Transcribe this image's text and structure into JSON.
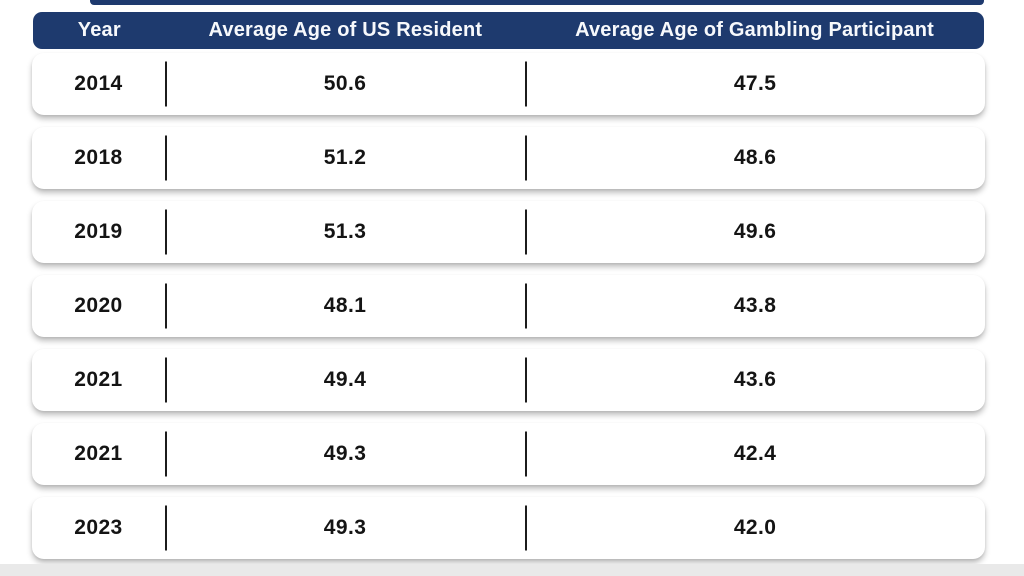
{
  "header": {
    "columns": [
      "Year",
      "Average Age of US Resident",
      "Average Age of Gambling Participant"
    ]
  },
  "table": {
    "rows": [
      {
        "year": "2014",
        "us_resident_age": "50.6",
        "gambling_age": "47.5"
      },
      {
        "year": "2018",
        "us_resident_age": "51.2",
        "gambling_age": "48.6"
      },
      {
        "year": "2019",
        "us_resident_age": "51.3",
        "gambling_age": "49.6"
      },
      {
        "year": "2020",
        "us_resident_age": "48.1",
        "gambling_age": "43.8"
      },
      {
        "year": "2021",
        "us_resident_age": "49.4",
        "gambling_age": "43.6"
      },
      {
        "year": "2021",
        "us_resident_age": "49.3",
        "gambling_age": "42.4"
      },
      {
        "year": "2023",
        "us_resident_age": "49.3",
        "gambling_age": "42.0"
      }
    ]
  },
  "chart_data": {
    "type": "table",
    "title": "",
    "columns": [
      "Year",
      "Average Age of US Resident",
      "Average Age of Gambling Participant"
    ],
    "rows": [
      [
        "2014",
        50.6,
        47.5
      ],
      [
        "2018",
        51.2,
        48.6
      ],
      [
        "2019",
        51.3,
        49.6
      ],
      [
        "2020",
        48.1,
        43.8
      ],
      [
        "2021",
        49.4,
        43.6
      ],
      [
        "2021",
        49.3,
        42.4
      ],
      [
        "2023",
        49.3,
        42.0
      ]
    ]
  },
  "colors": {
    "header_bg": "#1e3a6e",
    "header_text": "#f7f9fc",
    "row_text": "#141414",
    "divider": "#1c1c1c",
    "card_bg": "#ffffff",
    "page_bg": "#ffffff",
    "bottom_strip": "#e9e9e9"
  }
}
